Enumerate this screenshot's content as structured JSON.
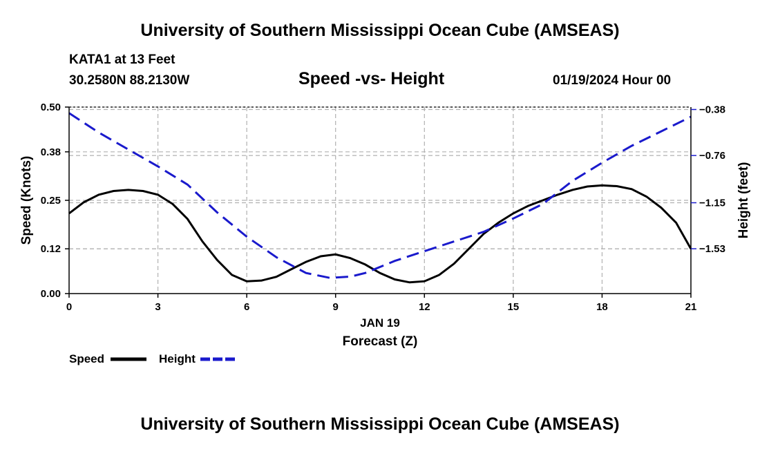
{
  "header": {
    "title": "University of Southern Mississippi Ocean Cube (AMSEAS)",
    "station": "KATA1 at 13 Feet",
    "coords": "30.2580N  88.2130W",
    "datetime": "01/19/2024 Hour 00"
  },
  "footer": {
    "title": "University of Southern Mississippi Ocean Cube (AMSEAS)"
  },
  "legend": {
    "speed_label": "Speed",
    "height_label": "Height"
  },
  "colors": {
    "speed": "#000000",
    "height": "#1a1acc",
    "grid": "#b0b0b0"
  },
  "chart_data": {
    "type": "line",
    "title": "Speed -vs- Height",
    "xlabel": "Forecast (Z)",
    "xsublabel": "JAN 19",
    "ylabel": "Speed (Knots)",
    "y2label": "Height (feet)",
    "xlim": [
      0,
      21
    ],
    "ylim": [
      0,
      0.5
    ],
    "y2lim": [
      -1.9,
      -0.36
    ],
    "x_ticks": [
      0,
      3,
      6,
      9,
      12,
      15,
      18,
      21
    ],
    "x_tick_labels": [
      "0",
      "3",
      "6",
      "9",
      "12",
      "15",
      "18",
      "21"
    ],
    "y_ticks": [
      0,
      0.12,
      0.25,
      0.38,
      0.5
    ],
    "y_tick_labels": [
      "0.00",
      "0.12",
      "0.25",
      "0.38",
      "0.50"
    ],
    "y2_ticks": [
      -0.38,
      -0.76,
      -1.15,
      -1.53
    ],
    "y2_tick_labels": [
      "−0.38",
      "−0.76",
      "−1.15",
      "−1.53"
    ],
    "series": [
      {
        "name": "Speed",
        "axis": "left",
        "style": "solid",
        "x": [
          0,
          0.5,
          1,
          1.5,
          2,
          2.5,
          3,
          3.5,
          4,
          4.5,
          5,
          5.5,
          6,
          6.5,
          7,
          7.5,
          8,
          8.5,
          9,
          9.5,
          10,
          10.5,
          11,
          11.5,
          12,
          12.5,
          13,
          13.5,
          14,
          14.5,
          15,
          15.5,
          16,
          16.5,
          17,
          17.5,
          18,
          18.5,
          19,
          19.5,
          20,
          20.5,
          21
        ],
        "values": [
          0.215,
          0.245,
          0.265,
          0.275,
          0.278,
          0.275,
          0.265,
          0.24,
          0.2,
          0.14,
          0.09,
          0.05,
          0.033,
          0.035,
          0.045,
          0.065,
          0.085,
          0.1,
          0.105,
          0.095,
          0.078,
          0.055,
          0.038,
          0.03,
          0.033,
          0.05,
          0.08,
          0.12,
          0.16,
          0.19,
          0.215,
          0.235,
          0.25,
          0.265,
          0.278,
          0.287,
          0.29,
          0.288,
          0.28,
          0.26,
          0.23,
          0.19,
          0.12
        ]
      },
      {
        "name": "Height",
        "axis": "right",
        "style": "dashed",
        "x": [
          0,
          1,
          2,
          3,
          4,
          5,
          6,
          7,
          8,
          8.8,
          9.5,
          10,
          11,
          12,
          13,
          14,
          15,
          16,
          17,
          18,
          19,
          20,
          21
        ],
        "values": [
          -0.41,
          -0.57,
          -0.71,
          -0.85,
          -1.0,
          -1.23,
          -1.43,
          -1.6,
          -1.73,
          -1.77,
          -1.76,
          -1.73,
          -1.63,
          -1.55,
          -1.47,
          -1.39,
          -1.28,
          -1.16,
          -0.97,
          -0.82,
          -0.68,
          -0.56,
          -0.44
        ]
      }
    ]
  }
}
